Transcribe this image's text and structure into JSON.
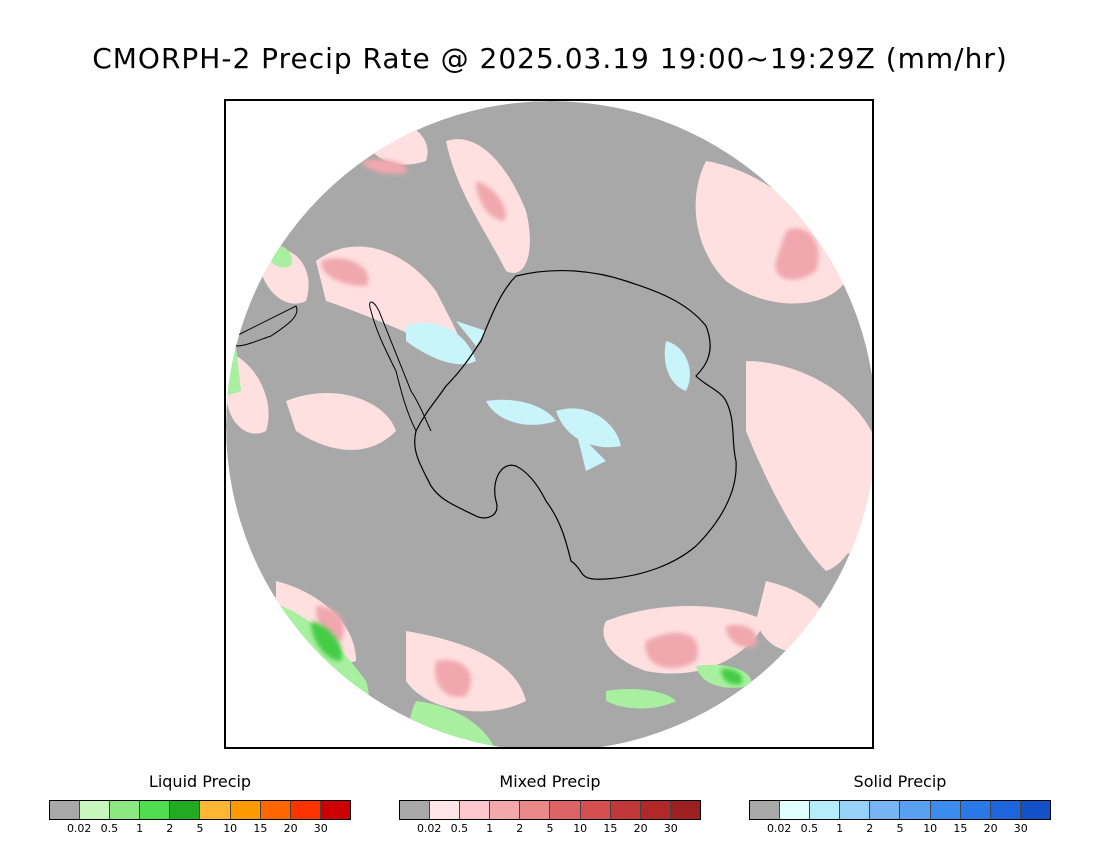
{
  "title": "CMORPH-2 Precip Rate @ 2025.03.19 19:00~19:29Z (mm/hr)",
  "colors": {
    "no_precip": "#a8a8a8",
    "liquid_light": "#a8f0a0",
    "liquid_mid": "#55dd55",
    "liquid_dark": "#22aa22",
    "mixed_light": "#ffe0e0",
    "mixed_mid": "#f0a0a8",
    "mixed_dark": "#d86070",
    "solid_light": "#c8f4fa",
    "coastline": "#000000"
  },
  "legends": [
    {
      "title": "Liquid Precip",
      "colors": [
        "#a8a8a8",
        "#c8f7bd",
        "#8ce880",
        "#50dd50",
        "#22aa22",
        "#ffb733",
        "#ff9900",
        "#ff6600",
        "#ff3300",
        "#cc0000"
      ],
      "ticks": [
        "0.02",
        "0.5",
        "1",
        "2",
        "5",
        "10",
        "15",
        "20",
        "30"
      ]
    },
    {
      "title": "Mixed Precip",
      "colors": [
        "#a8a8a8",
        "#ffe4e8",
        "#ffc8cc",
        "#f4a8ac",
        "#e88888",
        "#dc6464",
        "#d45050",
        "#c03838",
        "#b02828",
        "#9c2020"
      ],
      "ticks": [
        "0.02",
        "0.5",
        "1",
        "2",
        "5",
        "10",
        "15",
        "20",
        "30"
      ]
    },
    {
      "title": "Solid Precip",
      "colors": [
        "#a8a8a8",
        "#e0ffff",
        "#b4eefa",
        "#96d2fa",
        "#78b4f4",
        "#5aa0f0",
        "#3c8cf0",
        "#2878e8",
        "#1e64dc",
        "#1450c8"
      ],
      "ticks": [
        "0.02",
        "0.5",
        "1",
        "2",
        "5",
        "10",
        "15",
        "20",
        "30"
      ]
    }
  ]
}
